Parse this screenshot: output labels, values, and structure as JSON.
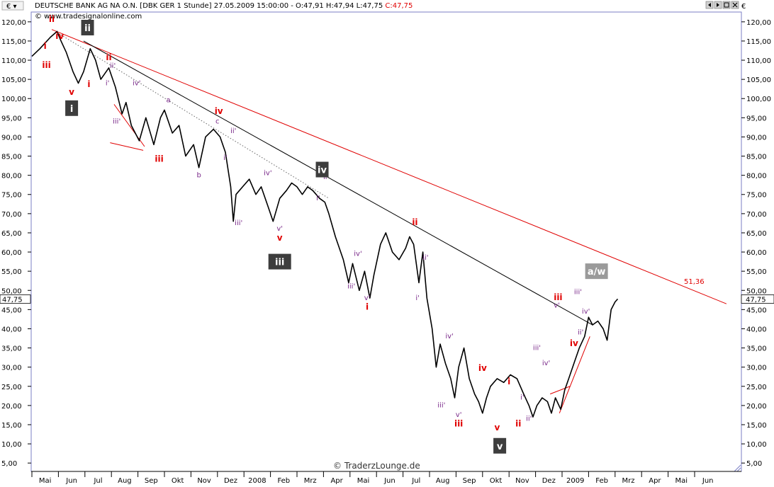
{
  "header": {
    "menu_icon": "euro-menu",
    "instrument_line": "DEUTSCHE BANK AG NA O.N. [DBK GER  1 Stunde] 27.05.2009 15:00:00 - O:47,91 H:47,94 L:47,75",
    "close_text": "C:47,75",
    "source": "© www.tradesignalonline.com",
    "nav_icons": [
      "left-arrow-icon",
      "right-arrow-icon",
      "fit-icon",
      "close-icon"
    ]
  },
  "watermark": "© TraderzLounge.de",
  "colors": {
    "price": "#000000",
    "red_label": "#e00000",
    "purple_label": "#7a2a8a",
    "trendline_red": "#e00000",
    "trendline_black": "#000000",
    "box_dark": "#3d3d3d",
    "box_light": "#9a9a9a",
    "frame": "#7b7fc4"
  },
  "chart_data": {
    "type": "line",
    "title": "DEUTSCHE BANK AG NA O.N. [DBK GER  1 Stunde]",
    "interval": "1 Stunde",
    "ylim": [
      3,
      122
    ],
    "y_ticks": [
      5,
      10,
      15,
      20,
      25,
      30,
      35,
      40,
      45,
      50,
      55,
      60,
      65,
      70,
      75,
      80,
      85,
      90,
      95,
      100,
      105,
      110,
      115,
      120
    ],
    "y_tick_labels": [
      "5,00",
      "10,00",
      "15,00",
      "20,00",
      "25,00",
      "30,00",
      "35,00",
      "40,00",
      "45,00",
      "50,00",
      "55,00",
      "60,00",
      "65,00",
      "70,00",
      "75,00",
      "80,00",
      "85,00",
      "90,00",
      "95,00",
      "100,00",
      "105,00",
      "110,00",
      "115,00",
      "120,00"
    ],
    "x_ticks": [
      "Mai",
      "Jun",
      "Jul",
      "Aug",
      "Sep",
      "Okt",
      "Nov",
      "Dez",
      "2008",
      "Feb",
      "Mrz",
      "Apr",
      "Mai",
      "Jun",
      "Jul",
      "Aug",
      "Sep",
      "Okt",
      "Nov",
      "Dez",
      "2009",
      "Feb",
      "Mrz",
      "Apr",
      "Mai",
      "Jun"
    ],
    "last_price": 47.75,
    "last_price_label": "47,75",
    "price_series": [
      [
        0,
        111
      ],
      [
        0.3,
        113
      ],
      [
        0.7,
        116
      ],
      [
        0.95,
        117.5
      ],
      [
        1.1,
        115
      ],
      [
        1.3,
        112
      ],
      [
        1.55,
        107
      ],
      [
        1.75,
        104
      ],
      [
        1.95,
        107
      ],
      [
        2.2,
        113
      ],
      [
        2.4,
        110
      ],
      [
        2.6,
        105
      ],
      [
        2.9,
        108
      ],
      [
        3.15,
        103
      ],
      [
        3.4,
        96
      ],
      [
        3.55,
        99
      ],
      [
        3.75,
        93
      ],
      [
        4.05,
        89
      ],
      [
        4.3,
        95
      ],
      [
        4.6,
        88
      ],
      [
        4.85,
        95
      ],
      [
        5.0,
        97
      ],
      [
        5.3,
        91
      ],
      [
        5.55,
        93
      ],
      [
        5.8,
        85
      ],
      [
        6.1,
        88
      ],
      [
        6.3,
        82
      ],
      [
        6.55,
        90
      ],
      [
        6.85,
        92
      ],
      [
        7.1,
        90
      ],
      [
        7.3,
        86
      ],
      [
        7.5,
        77
      ],
      [
        7.6,
        68
      ],
      [
        7.7,
        75
      ],
      [
        7.95,
        77
      ],
      [
        8.2,
        79
      ],
      [
        8.45,
        75
      ],
      [
        8.65,
        77
      ],
      [
        8.9,
        72
      ],
      [
        9.1,
        68
      ],
      [
        9.35,
        74
      ],
      [
        9.6,
        76
      ],
      [
        9.8,
        78
      ],
      [
        10.0,
        77
      ],
      [
        10.2,
        75
      ],
      [
        10.4,
        77
      ],
      [
        10.6,
        76
      ],
      [
        10.85,
        74
      ],
      [
        11.05,
        73
      ],
      [
        11.2,
        70
      ],
      [
        11.45,
        64
      ],
      [
        11.75,
        58
      ],
      [
        11.95,
        52
      ],
      [
        12.1,
        57
      ],
      [
        12.35,
        50
      ],
      [
        12.55,
        55
      ],
      [
        12.75,
        48
      ],
      [
        12.9,
        54
      ],
      [
        13.15,
        62
      ],
      [
        13.35,
        65
      ],
      [
        13.6,
        60
      ],
      [
        13.85,
        58
      ],
      [
        14.1,
        61
      ],
      [
        14.25,
        64
      ],
      [
        14.4,
        62
      ],
      [
        14.6,
        52
      ],
      [
        14.75,
        60
      ],
      [
        14.9,
        48
      ],
      [
        15.1,
        40
      ],
      [
        15.25,
        30
      ],
      [
        15.4,
        36
      ],
      [
        15.6,
        31
      ],
      [
        15.8,
        27
      ],
      [
        15.95,
        22
      ],
      [
        16.1,
        30
      ],
      [
        16.3,
        35
      ],
      [
        16.5,
        27
      ],
      [
        16.7,
        23
      ],
      [
        16.85,
        21
      ],
      [
        17.0,
        18
      ],
      [
        17.15,
        22
      ],
      [
        17.3,
        25
      ],
      [
        17.55,
        27
      ],
      [
        17.8,
        26
      ],
      [
        18.05,
        28
      ],
      [
        18.3,
        27
      ],
      [
        18.55,
        23
      ],
      [
        18.75,
        20
      ],
      [
        18.9,
        17
      ],
      [
        19.05,
        20
      ],
      [
        19.25,
        22
      ],
      [
        19.45,
        21
      ],
      [
        19.6,
        18
      ],
      [
        19.75,
        22
      ],
      [
        19.95,
        19
      ],
      [
        20.1,
        24
      ],
      [
        20.25,
        27
      ],
      [
        20.45,
        31
      ],
      [
        20.65,
        35
      ],
      [
        20.85,
        38
      ],
      [
        21.0,
        43
      ],
      [
        21.15,
        41
      ],
      [
        21.35,
        42
      ],
      [
        21.55,
        40
      ],
      [
        21.7,
        37
      ],
      [
        21.85,
        45
      ],
      [
        22.0,
        47
      ],
      [
        22.1,
        47.75
      ]
    ],
    "trendlines": [
      {
        "name": "red-channel-upper",
        "points": [
          [
            0.75,
            118
          ],
          [
            26.2,
            46.5
          ]
        ]
      },
      {
        "name": "black-trendline",
        "points": [
          [
            1.95,
            115
          ],
          [
            21.15,
            41
          ]
        ]
      },
      {
        "name": "dotted-guide",
        "points": [
          [
            1.0,
            117
          ],
          [
            11.2,
            74
          ]
        ]
      },
      {
        "name": "red-wedge-line-1",
        "points": [
          [
            2.95,
            88.5
          ],
          [
            4.2,
            86.5
          ]
        ]
      },
      {
        "name": "red-wedge-line-2",
        "points": [
          [
            3.1,
            98.5
          ],
          [
            4.25,
            87.5
          ]
        ]
      },
      {
        "name": "red-short-line",
        "points": [
          [
            19.55,
            23
          ],
          [
            20.3,
            25
          ]
        ]
      },
      {
        "name": "red-rising-line",
        "points": [
          [
            19.9,
            18
          ],
          [
            21.05,
            38
          ]
        ]
      }
    ],
    "target_label": "51,36",
    "target_value": 51.36,
    "wave_labels": [
      {
        "text": "ii",
        "style": "red",
        "x": 0.75,
        "y": 120
      },
      {
        "text": "i",
        "style": "red",
        "x": 0.5,
        "y": 113
      },
      {
        "text": "iii",
        "style": "red",
        "x": 0.55,
        "y": 108
      },
      {
        "text": "iv",
        "style": "red",
        "x": 1.05,
        "y": 115.5
      },
      {
        "text": "v",
        "style": "red",
        "x": 1.5,
        "y": 101
      },
      {
        "text": "i",
        "style": "red",
        "x": 2.15,
        "y": 103
      },
      {
        "text": "ii",
        "style": "red",
        "x": 2.9,
        "y": 110
      },
      {
        "text": "ii'",
        "style": "purple",
        "x": 3.05,
        "y": 108
      },
      {
        "text": "i'",
        "style": "purple",
        "x": 2.85,
        "y": 103.5
      },
      {
        "text": "iv'",
        "style": "purple",
        "x": 3.95,
        "y": 103.5
      },
      {
        "text": "iii'",
        "style": "purple",
        "x": 3.2,
        "y": 93.5
      },
      {
        "text": "iii",
        "style": "red",
        "x": 4.8,
        "y": 83.5
      },
      {
        "text": "a",
        "style": "purple",
        "x": 5.15,
        "y": 99
      },
      {
        "text": "b",
        "style": "purple",
        "x": 6.3,
        "y": 79.5
      },
      {
        "text": "iv",
        "style": "red",
        "x": 7.05,
        "y": 96
      },
      {
        "text": "c",
        "style": "purple",
        "x": 7.0,
        "y": 93.5
      },
      {
        "text": "ii'",
        "style": "purple",
        "x": 7.6,
        "y": 91
      },
      {
        "text": "i'",
        "style": "purple",
        "x": 7.3,
        "y": 84
      },
      {
        "text": "iii'",
        "style": "purple",
        "x": 7.8,
        "y": 67
      },
      {
        "text": "iv'",
        "style": "purple",
        "x": 8.9,
        "y": 80
      },
      {
        "text": "v'",
        "style": "purple",
        "x": 9.35,
        "y": 65.5
      },
      {
        "text": "v",
        "style": "red",
        "x": 9.35,
        "y": 63
      },
      {
        "text": "ii'",
        "style": "purple",
        "x": 11.1,
        "y": 79
      },
      {
        "text": "i'",
        "style": "purple",
        "x": 10.8,
        "y": 73.5
      },
      {
        "text": "ii",
        "style": "red",
        "x": 14.45,
        "y": 67
      },
      {
        "text": "iv'",
        "style": "purple",
        "x": 12.3,
        "y": 59
      },
      {
        "text": "iii'",
        "style": "purple",
        "x": 12.05,
        "y": 50.5
      },
      {
        "text": "v'",
        "style": "purple",
        "x": 12.65,
        "y": 47.5
      },
      {
        "text": "i",
        "style": "red",
        "x": 12.65,
        "y": 45
      },
      {
        "text": "ii'",
        "style": "purple",
        "x": 14.85,
        "y": 58
      },
      {
        "text": "i'",
        "style": "purple",
        "x": 14.55,
        "y": 47.5
      },
      {
        "text": "iv'",
        "style": "purple",
        "x": 15.75,
        "y": 37.5
      },
      {
        "text": "iii'",
        "style": "purple",
        "x": 15.45,
        "y": 19.5
      },
      {
        "text": "v'",
        "style": "purple",
        "x": 16.1,
        "y": 17
      },
      {
        "text": "iii",
        "style": "red",
        "x": 16.1,
        "y": 14.5
      },
      {
        "text": "iv",
        "style": "red",
        "x": 17.0,
        "y": 29
      },
      {
        "text": "i",
        "style": "red",
        "x": 18.0,
        "y": 25.5
      },
      {
        "text": "i'",
        "style": "purple",
        "x": 18.5,
        "y": 21.5
      },
      {
        "text": "ii'",
        "style": "purple",
        "x": 18.75,
        "y": 16
      },
      {
        "text": "v",
        "style": "red",
        "x": 17.55,
        "y": 13.5
      },
      {
        "text": "ii",
        "style": "red",
        "x": 18.35,
        "y": 14.5
      },
      {
        "text": "iii'",
        "style": "purple",
        "x": 19.05,
        "y": 34.5
      },
      {
        "text": "iv'",
        "style": "purple",
        "x": 19.4,
        "y": 30.5
      },
      {
        "text": "iii",
        "style": "red",
        "x": 19.85,
        "y": 47.5
      },
      {
        "text": "v'",
        "style": "purple",
        "x": 19.8,
        "y": 45.5
      },
      {
        "text": "iii'",
        "style": "purple",
        "x": 20.6,
        "y": 49
      },
      {
        "text": "ii'",
        "style": "purple",
        "x": 20.7,
        "y": 38.5
      },
      {
        "text": "iv'",
        "style": "purple",
        "x": 20.9,
        "y": 44
      },
      {
        "text": "iv",
        "style": "red",
        "x": 20.45,
        "y": 35.5
      }
    ],
    "box_labels": [
      {
        "text": "ii",
        "style": "dark",
        "x": 2.1,
        "y": 118.5
      },
      {
        "text": "i",
        "style": "dark",
        "x": 1.5,
        "y": 97.5
      },
      {
        "text": "iv",
        "style": "dark",
        "x": 10.95,
        "y": 81.5
      },
      {
        "text": "iii",
        "style": "dark",
        "x": 9.35,
        "y": 57.5
      },
      {
        "text": "v",
        "style": "dark",
        "x": 17.65,
        "y": 9.5
      },
      {
        "text": "a/w",
        "style": "light",
        "x": 21.3,
        "y": 55
      }
    ]
  }
}
